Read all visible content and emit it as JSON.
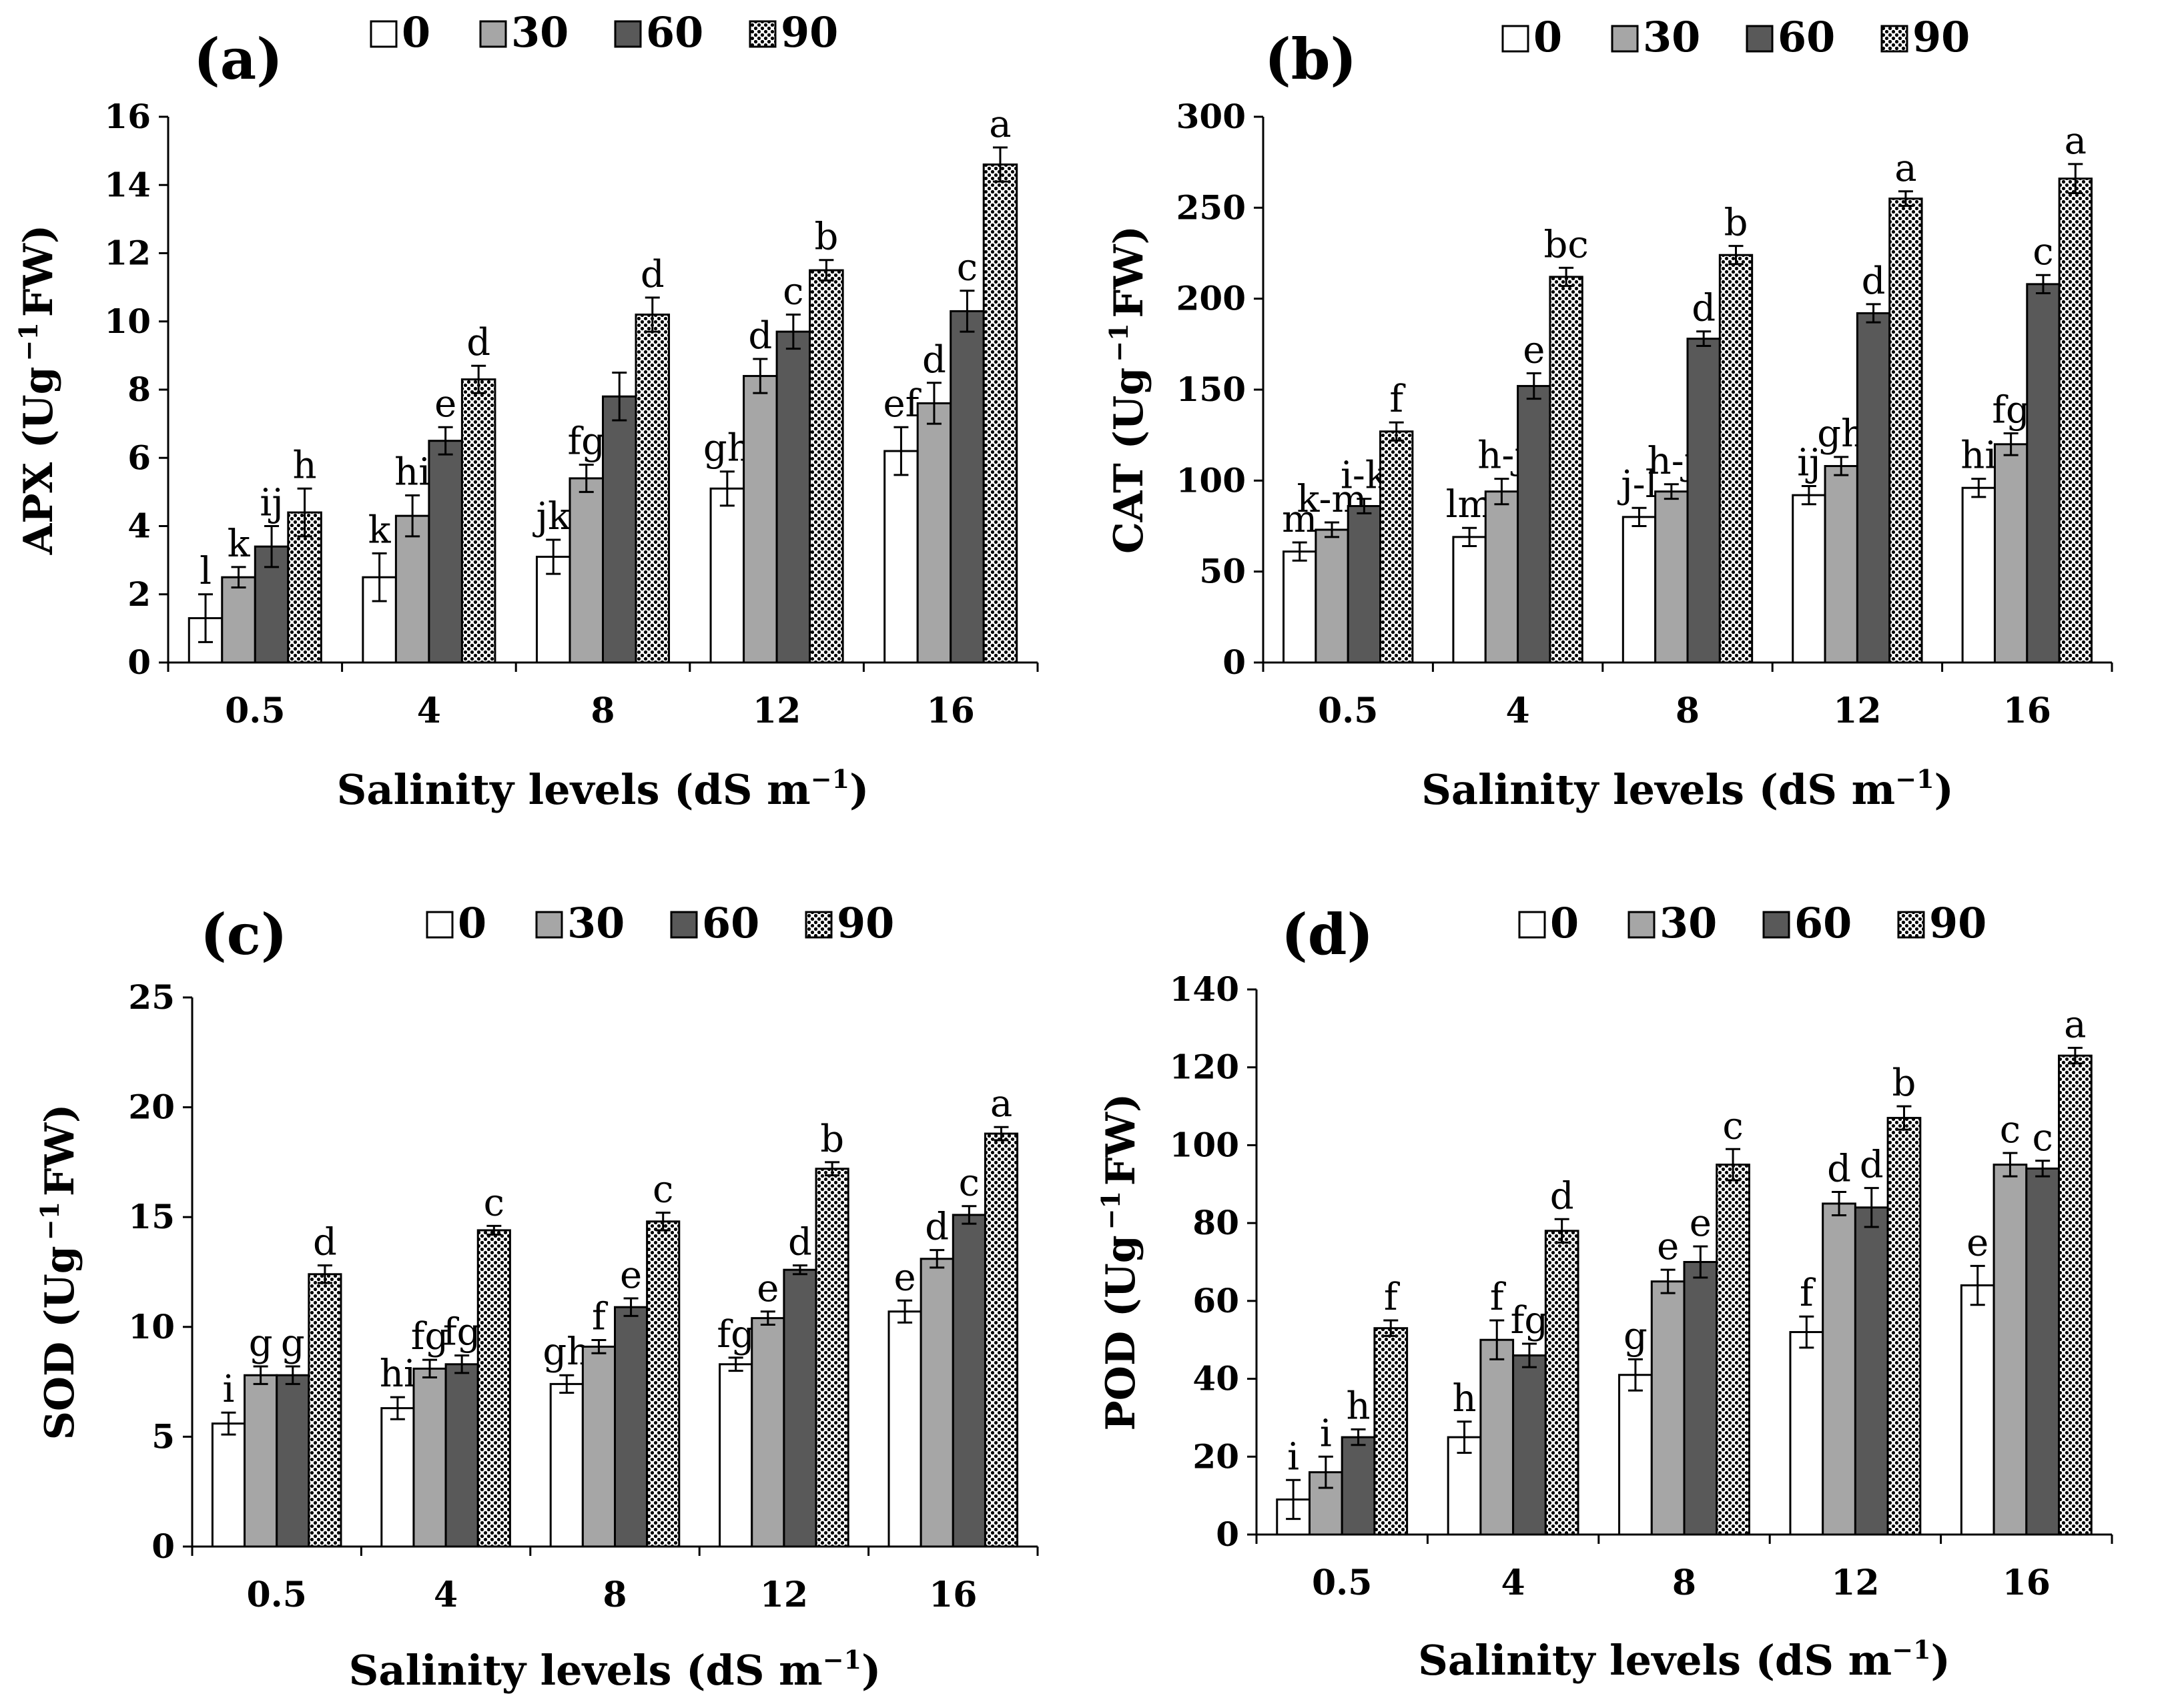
{
  "series_styles": [
    {
      "name": "0",
      "fill": "#ffffff",
      "pattern": "none"
    },
    {
      "name": "30",
      "fill": "#a6a6a6",
      "pattern": "none"
    },
    {
      "name": "60",
      "fill": "#595959",
      "pattern": "none"
    },
    {
      "name": "90",
      "fill": "#ffffff",
      "pattern": "dots"
    }
  ],
  "chart_data": [
    {
      "type": "bar",
      "panel": "(a)",
      "ylabel_main": "APX (Ug",
      "ylabel_sup": "−1",
      "ylabel_tail": "FW)",
      "xlabel_main": "Salinity levels (dS m",
      "xlabel_sup": "−1",
      "xlabel_tail": ")",
      "categories": [
        "0.5",
        "4",
        "8",
        "12",
        "16"
      ],
      "ylim": [
        0,
        16
      ],
      "yticks": [
        0,
        2,
        4,
        6,
        8,
        10,
        12,
        14,
        16
      ],
      "legend_placement": "top",
      "series": [
        {
          "name": "0",
          "values": [
            1.3,
            2.5,
            3.1,
            5.1,
            6.2
          ],
          "errors": [
            0.7,
            0.7,
            0.5,
            0.5,
            0.7
          ],
          "labels": [
            "l",
            "k",
            "jk",
            "gh",
            "ef"
          ]
        },
        {
          "name": "30",
          "values": [
            2.5,
            4.3,
            5.4,
            8.4,
            7.6
          ],
          "errors": [
            0.3,
            0.6,
            0.4,
            0.5,
            0.6
          ],
          "labels": [
            "k",
            "hi",
            "fg",
            "d",
            "d"
          ]
        },
        {
          "name": "60",
          "values": [
            3.4,
            6.5,
            7.8,
            9.7,
            10.3
          ],
          "errors": [
            0.6,
            0.4,
            0.7,
            0.5,
            0.6
          ],
          "labels": [
            "ij",
            "e",
            "",
            "c",
            "c"
          ]
        },
        {
          "name": "90",
          "values": [
            4.4,
            8.3,
            10.2,
            11.5,
            14.6
          ],
          "errors": [
            0.7,
            0.4,
            0.5,
            0.3,
            0.5
          ],
          "labels": [
            "h",
            "d",
            "d",
            "b",
            "a"
          ]
        }
      ]
    },
    {
      "type": "bar",
      "panel": "(b)",
      "ylabel_main": "CAT (Ug",
      "ylabel_sup": "−1",
      "ylabel_tail": "FW)",
      "xlabel_main": "Salinity levels (dS m",
      "xlabel_sup": "−1",
      "xlabel_tail": ")",
      "categories": [
        "0.5",
        "4",
        "8",
        "12",
        "16"
      ],
      "ylim": [
        0,
        300
      ],
      "yticks": [
        0,
        50,
        100,
        150,
        200,
        250,
        300
      ],
      "legend_placement": "top",
      "series": [
        {
          "name": "0",
          "values": [
            61,
            69,
            80,
            92,
            96
          ],
          "errors": [
            5,
            5,
            5,
            5,
            5
          ],
          "labels": [
            "m",
            "lm",
            "j-l",
            "ij",
            "hi"
          ]
        },
        {
          "name": "30",
          "values": [
            73,
            94,
            94,
            108,
            120
          ],
          "errors": [
            4,
            7,
            4,
            5,
            6
          ],
          "labels": [
            "k-m",
            "h-j",
            "h-j",
            "gh",
            "fg"
          ]
        },
        {
          "name": "60",
          "values": [
            86,
            152,
            178,
            192,
            208
          ],
          "errors": [
            4,
            7,
            4,
            5,
            5
          ],
          "labels": [
            "i-k",
            "e",
            "d",
            "d",
            "c"
          ]
        },
        {
          "name": "90",
          "values": [
            127,
            212,
            224,
            255,
            266
          ],
          "errors": [
            5,
            5,
            5,
            4,
            8
          ],
          "labels": [
            "f",
            "bc",
            "b",
            "a",
            "a"
          ]
        }
      ]
    },
    {
      "type": "bar",
      "panel": "(c)",
      "ylabel_main": "SOD (Ug",
      "ylabel_sup": "−1",
      "ylabel_tail": "FW)",
      "xlabel_main": "Salinity levels (dS m",
      "xlabel_sup": "−1",
      "xlabel_tail": ")",
      "categories": [
        "0.5",
        "4",
        "8",
        "12",
        "16"
      ],
      "ylim": [
        0,
        25
      ],
      "yticks": [
        0,
        5,
        10,
        15,
        20,
        25
      ],
      "legend_placement": "top",
      "series": [
        {
          "name": "0",
          "values": [
            5.6,
            6.3,
            7.4,
            8.3,
            10.7
          ],
          "errors": [
            0.5,
            0.5,
            0.4,
            0.3,
            0.5
          ],
          "labels": [
            "i",
            "hi",
            "gh",
            "fg",
            "e"
          ]
        },
        {
          "name": "30",
          "values": [
            7.8,
            8.1,
            9.1,
            10.4,
            13.1
          ],
          "errors": [
            0.4,
            0.4,
            0.3,
            0.3,
            0.4
          ],
          "labels": [
            "g",
            "fg",
            "f",
            "e",
            "d"
          ]
        },
        {
          "name": "60",
          "values": [
            7.8,
            8.3,
            10.9,
            12.6,
            15.1
          ],
          "errors": [
            0.4,
            0.4,
            0.4,
            0.2,
            0.4
          ],
          "labels": [
            "g",
            "fg",
            "e",
            "d",
            "c"
          ]
        },
        {
          "name": "90",
          "values": [
            12.4,
            14.4,
            14.8,
            17.2,
            18.8
          ],
          "errors": [
            0.4,
            0.2,
            0.4,
            0.3,
            0.3
          ],
          "labels": [
            "d",
            "c",
            "c",
            "b",
            "a"
          ]
        }
      ]
    },
    {
      "type": "bar",
      "panel": "(d)",
      "ylabel_main": "POD (Ug",
      "ylabel_sup": "−1",
      "ylabel_tail": "FW)",
      "xlabel_main": "Salinity levels (dS m",
      "xlabel_sup": "−1",
      "xlabel_tail": ")",
      "categories": [
        "0.5",
        "4",
        "8",
        "12",
        "16"
      ],
      "ylim": [
        0,
        140
      ],
      "yticks": [
        0,
        20,
        40,
        60,
        80,
        100,
        120,
        140
      ],
      "legend_placement": "top",
      "series": [
        {
          "name": "0",
          "values": [
            9,
            25,
            41,
            52,
            64
          ],
          "errors": [
            5,
            4,
            4,
            4,
            5
          ],
          "labels": [
            "i",
            "h",
            "g",
            "f",
            "e"
          ]
        },
        {
          "name": "30",
          "values": [
            16,
            50,
            65,
            85,
            95
          ],
          "errors": [
            4,
            5,
            3,
            3,
            3
          ],
          "labels": [
            "i",
            "f",
            "e",
            "d",
            "c"
          ]
        },
        {
          "name": "60",
          "values": [
            25,
            46,
            70,
            84,
            94
          ],
          "errors": [
            2,
            3,
            4,
            5,
            2
          ],
          "labels": [
            "h",
            "fg",
            "e",
            "d",
            "c"
          ]
        },
        {
          "name": "90",
          "values": [
            53,
            78,
            95,
            107,
            123
          ],
          "errors": [
            2,
            3,
            4,
            3,
            2
          ],
          "labels": [
            "f",
            "d",
            "c",
            "b",
            "a"
          ]
        }
      ]
    }
  ]
}
